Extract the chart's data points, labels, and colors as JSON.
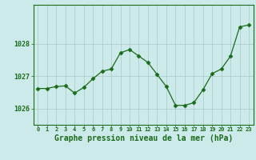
{
  "x": [
    0,
    1,
    2,
    3,
    4,
    5,
    6,
    7,
    8,
    9,
    10,
    11,
    12,
    13,
    14,
    15,
    16,
    17,
    18,
    19,
    20,
    21,
    22,
    23
  ],
  "y": [
    1026.62,
    1026.62,
    1026.68,
    1026.7,
    1026.48,
    1026.65,
    1026.92,
    1027.15,
    1027.22,
    1027.72,
    1027.82,
    1027.62,
    1027.42,
    1027.05,
    1026.68,
    1026.1,
    1026.1,
    1026.18,
    1026.58,
    1027.08,
    1027.22,
    1027.62,
    1028.52,
    1028.58
  ],
  "line_color": "#1a6b1a",
  "marker": "D",
  "marker_size": 2.5,
  "background_color": "#cceaea",
  "grid_color": "#aac8c8",
  "tick_color": "#1a6b1a",
  "xlabel": "Graphe pression niveau de la mer (hPa)",
  "xlabel_fontsize": 7.0,
  "xlabel_color": "#1a6b1a",
  "ylim": [
    1025.5,
    1029.2
  ],
  "ytick_values": [
    1026,
    1027,
    1028
  ],
  "figsize": [
    3.2,
    2.0
  ],
  "dpi": 100
}
